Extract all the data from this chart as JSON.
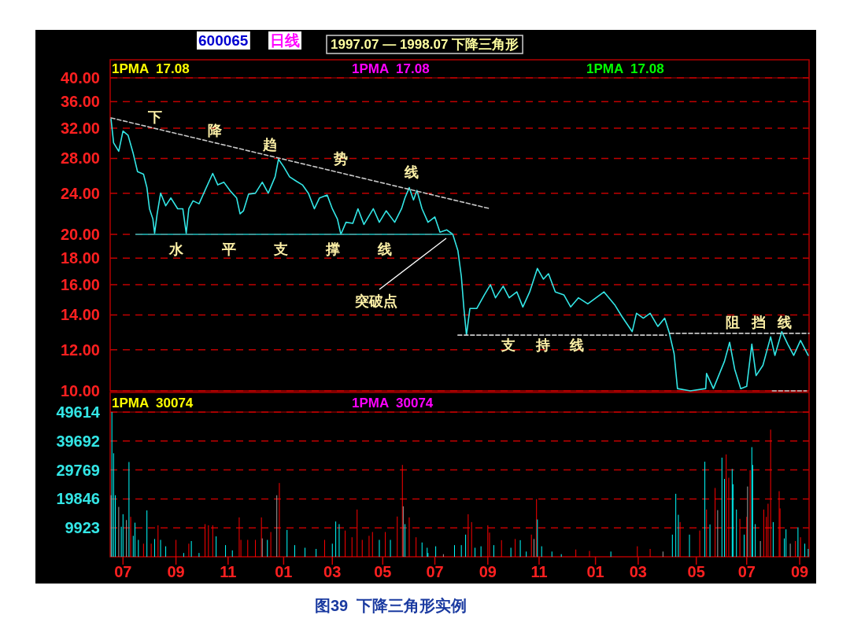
{
  "chart_data": [
    {
      "type": "line",
      "title": "1997.07 — 1998.07 下降三角形",
      "log": "y",
      "grid": "y",
      "tick_labels": "y",
      "xlim": [
        "1997-06-28",
        "1999-09-24"
      ],
      "ylim": [
        10,
        40
      ],
      "yticks": [
        {
          "value": 10,
          "label": "10.00"
        },
        {
          "value": 12,
          "label": "12.00"
        },
        {
          "value": 14,
          "label": "14.00"
        },
        {
          "value": 16,
          "label": "16.00"
        },
        {
          "value": 18,
          "label": "18.00"
        },
        {
          "value": 20,
          "label": "20.00"
        },
        {
          "value": 24,
          "label": "24.00"
        },
        {
          "value": 28,
          "label": "28.00"
        },
        {
          "value": 32,
          "label": "32.00"
        },
        {
          "value": 36,
          "label": "36.00"
        },
        {
          "value": 40,
          "label": "40.00"
        }
      ],
      "series": [
        {
          "color": "#33e6e6",
          "x": [
            "1997-06-29",
            "1997-07-02",
            "1997-07-08",
            "1997-07-13",
            "1997-07-19",
            "1997-07-25",
            "1997-07-30",
            "1997-08-06",
            "1997-08-10",
            "1997-08-13",
            "1997-08-17",
            "1997-08-19",
            "1997-08-22",
            "1997-08-26",
            "1997-09-01",
            "1997-09-07",
            "1997-09-15",
            "1997-09-21",
            "1997-09-25",
            "1997-09-28",
            "1997-10-03",
            "1997-10-10",
            "1997-10-17",
            "1997-10-26",
            "1997-11-01",
            "1997-11-08",
            "1997-11-15",
            "1997-11-23",
            "1997-11-27",
            "1997-12-01",
            "1997-12-07",
            "1997-12-15",
            "1997-12-23",
            "1997-12-30",
            "1998-01-07",
            "1998-01-11",
            "1998-01-17",
            "1998-01-24",
            "1998-02-01",
            "1998-02-08",
            "1998-02-15",
            "1998-02-22",
            "1998-02-28",
            "1998-03-09",
            "1998-03-15",
            "1998-03-21",
            "1998-03-25",
            "1998-03-31",
            "1998-04-08",
            "1998-04-14",
            "1998-04-21",
            "1998-05-02",
            "1998-05-09",
            "1998-05-17",
            "1998-05-27",
            "1998-06-04",
            "1998-06-08",
            "1998-06-13",
            "1998-06-18",
            "1998-06-22",
            "1998-06-28",
            "1998-07-05",
            "1998-07-13",
            "1998-07-19",
            "1998-07-27",
            "1998-08-03",
            "1998-08-09",
            "1998-08-13",
            "1998-08-16",
            "1998-08-19",
            "1998-08-23",
            "1998-08-31",
            "1998-09-09",
            "1998-09-16",
            "1998-09-22",
            "1998-10-01",
            "1998-10-08",
            "1998-10-17",
            "1998-10-24",
            "1998-11-01",
            "1998-11-10",
            "1998-11-17",
            "1998-11-23",
            "1998-12-01",
            "1998-12-11",
            "1998-12-19",
            "1998-12-28",
            "1999-01-08",
            "1999-01-27",
            "1999-02-09",
            "1999-02-17",
            "1999-03-01",
            "1999-03-06",
            "1999-03-14",
            "1999-03-22",
            "1999-03-31",
            "1999-04-08",
            "1999-04-13",
            "1999-04-19",
            "1999-04-23",
            "1999-05-08",
            "1999-05-26",
            "1999-05-27",
            "1999-06-04",
            "1999-06-17",
            "1999-06-23",
            "1999-06-29",
            "1999-07-06",
            "1999-07-13",
            "1999-07-19",
            "1999-07-24",
            "1999-08-01",
            "1999-08-10",
            "1999-08-15",
            "1999-08-23",
            "1999-08-30",
            "1999-09-06",
            "1999-09-14",
            "1999-09-23"
          ],
          "values": [
            33.3,
            30.0,
            28.9,
            31.6,
            31.0,
            28.6,
            26.4,
            26.1,
            24.6,
            22.4,
            21.4,
            20.1,
            21.9,
            24.0,
            22.7,
            23.5,
            22.4,
            22.4,
            20.1,
            22.4,
            23.2,
            22.9,
            24.3,
            26.2,
            24.9,
            25.2,
            24.3,
            23.5,
            21.9,
            22.2,
            23.9,
            24.0,
            25.2,
            24.0,
            25.8,
            27.9,
            27.0,
            25.8,
            25.3,
            24.9,
            24.0,
            22.4,
            23.5,
            23.8,
            22.4,
            21.4,
            20.0,
            21.1,
            21.0,
            22.4,
            20.9,
            22.4,
            21.1,
            22.2,
            21.1,
            22.4,
            23.5,
            24.6,
            23.3,
            24.3,
            22.4,
            21.1,
            21.6,
            20.2,
            20.4,
            20.0,
            18.6,
            16.6,
            14.4,
            12.8,
            14.4,
            14.4,
            15.3,
            16.0,
            15.1,
            15.9,
            15.1,
            15.5,
            14.5,
            15.5,
            17.2,
            16.4,
            16.8,
            15.5,
            15.3,
            14.5,
            15.1,
            14.7,
            15.5,
            14.6,
            13.9,
            13.0,
            14.1,
            13.8,
            14.1,
            13.3,
            13.8,
            13.0,
            11.8,
            10.1,
            10.0,
            10.1,
            10.8,
            10.1,
            11.4,
            12.4,
            11.0,
            10.1,
            10.2,
            12.3,
            10.7,
            11.2,
            12.7,
            11.7,
            13.0,
            12.3,
            11.7,
            12.5,
            11.7
          ]
        },
        {
          "color": "#c8c8c8",
          "line_style": "dashed",
          "x": [
            "1997-06-29",
            "1998-09-16"
          ],
          "values": [
            33.5,
            22.4
          ]
        },
        {
          "color": "#20c0c0",
          "line_style": "solid",
          "x": [
            "1997-07-28",
            "1998-08-03"
          ],
          "values": [
            20,
            20
          ]
        },
        {
          "color": "#c8c8c8",
          "line_style": "dashed",
          "x": [
            "1998-08-09",
            "1999-04-10"
          ],
          "values": [
            12.8,
            12.8
          ]
        },
        {
          "color": "#c8c8c8",
          "line_style": "dashed",
          "x": [
            "1999-04-14",
            "1999-09-24"
          ],
          "values": [
            12.9,
            12.9
          ]
        },
        {
          "color": "#c8c8c8",
          "line_style": "dashed",
          "x": [
            "1999-08-12",
            "1999-09-21"
          ],
          "values": [
            10.0,
            10.0
          ]
        }
      ],
      "annotations": [
        "600065",
        "日线",
        "1PMA  17.08",
        "1PMA  17.08",
        "1PMA  17.08",
        "下",
        "降",
        "趋",
        "势",
        "线",
        "水",
        "平",
        "支",
        "撑",
        "线",
        "突破点",
        "支",
        "持",
        "线",
        "阻",
        "挡",
        "线"
      ]
    },
    {
      "type": "bar",
      "grid": "y",
      "xlim": [
        "1997-06-28",
        "1999-09-24"
      ],
      "ylim": [
        0,
        49614
      ],
      "yticks": [
        9923,
        19846,
        29769,
        39692,
        49614
      ],
      "xticks": [
        {
          "value": "1997-07-13",
          "label": "07"
        },
        {
          "value": "1997-09-13",
          "label": "09"
        },
        {
          "value": "1997-11-13",
          "label": "11"
        },
        {
          "value": "1998-01-17",
          "label": "01"
        },
        {
          "value": "1998-03-15",
          "label": "03"
        },
        {
          "value": "1998-05-13",
          "label": "05"
        },
        {
          "value": "1998-07-13",
          "label": "07"
        },
        {
          "value": "1998-09-13",
          "label": "09"
        },
        {
          "value": "1998-11-12",
          "label": "11"
        },
        {
          "value": "1999-01-17",
          "label": "01"
        },
        {
          "value": "1999-03-08",
          "label": "03"
        },
        {
          "value": "1999-05-15",
          "label": "05"
        },
        {
          "value": "1999-07-13",
          "label": "07"
        },
        {
          "value": "1999-09-13",
          "label": "09"
        }
      ],
      "x": [
        "1997-06-29",
        "1997-06-30",
        "1997-07-02",
        "1997-07-04",
        "1997-07-08",
        "1997-07-11",
        "1997-07-13",
        "1997-07-17",
        "1997-07-20",
        "1997-07-22",
        "1997-07-25",
        "1997-07-27",
        "1997-07-31",
        "1997-08-06",
        "1997-08-10",
        "1997-08-15",
        "1997-08-19",
        "1997-08-23",
        "1997-08-26",
        "1997-09-01",
        "1997-09-13",
        "1997-09-22",
        "1997-09-28",
        "1997-10-01",
        "1997-10-10",
        "1997-10-17",
        "1997-10-21",
        "1997-10-26",
        "1997-10-30",
        "1997-11-10",
        "1997-11-18",
        "1997-11-26",
        "1997-11-28",
        "1997-12-06",
        "1997-12-15",
        "1997-12-22",
        "1997-12-23",
        "1997-12-29",
        "1998-01-02",
        "1998-01-09",
        "1998-01-12",
        "1998-01-21",
        "1998-01-30",
        "1998-02-11",
        "1998-02-24",
        "1998-03-06",
        "1998-03-15",
        "1998-03-19",
        "1998-03-23",
        "1998-03-30",
        "1998-04-07",
        "1998-04-13",
        "1998-04-19",
        "1998-04-27",
        "1998-05-01",
        "1998-05-09",
        "1998-05-16",
        "1998-05-22",
        "1998-05-30",
        "1998-06-05",
        "1998-06-06",
        "1998-06-08",
        "1998-06-13",
        "1998-06-21",
        "1998-06-28",
        "1998-07-04",
        "1998-07-05",
        "1998-07-14",
        "1998-07-23",
        "1998-08-05",
        "1998-08-13",
        "1998-08-18",
        "1998-08-21",
        "1998-08-25",
        "1998-08-29",
        "1998-09-05",
        "1998-09-13",
        "1998-09-15",
        "1998-09-20",
        "1998-09-29",
        "1998-10-10",
        "1998-10-15",
        "1998-10-21",
        "1998-10-28",
        "1998-11-03",
        "1998-11-06",
        "1998-11-09",
        "1998-11-10",
        "1998-11-15",
        "1998-11-27",
        "1998-12-08",
        "1998-12-25",
        "1999-01-10",
        "1999-02-04",
        "1999-03-07",
        "1999-03-22",
        "1999-04-06",
        "1999-04-17",
        "1999-04-21",
        "1999-04-24",
        "1999-04-26",
        "1999-05-07",
        "1999-05-19",
        "1999-05-25",
        "1999-05-27",
        "1999-05-31",
        "1999-06-06",
        "1999-06-09",
        "1999-06-14",
        "1999-06-17",
        "1999-06-19",
        "1999-06-22",
        "1999-06-26",
        "1999-06-27",
        "1999-07-01",
        "1999-07-05",
        "1999-07-10",
        "1999-07-13",
        "1999-07-14",
        "1999-07-17",
        "1999-07-19",
        "1999-07-20",
        "1999-07-23",
        "1999-07-29",
        "1999-08-02",
        "1999-08-05",
        "1999-08-07",
        "1999-08-10",
        "1999-08-13",
        "1999-08-20",
        "1999-08-21",
        "1999-08-26",
        "1999-08-28",
        "1999-09-02",
        "1999-09-08",
        "1999-09-11",
        "1999-09-14",
        "1999-09-19",
        "1999-09-23"
      ],
      "values": [
        21100,
        49600,
        35500,
        21100,
        17100,
        10300,
        14600,
        12600,
        32500,
        13700,
        7200,
        11700,
        5800,
        4500,
        15900,
        4500,
        6100,
        10800,
        5800,
        3600,
        5800,
        1300,
        4500,
        5400,
        1300,
        11200,
        10800,
        10800,
        7000,
        4000,
        2200,
        13500,
        5800,
        5800,
        5800,
        13500,
        6300,
        5800,
        8500,
        21100,
        25300,
        9200,
        4000,
        3100,
        2700,
        5800,
        4500,
        12100,
        11200,
        9000,
        6700,
        16200,
        5800,
        7200,
        8500,
        5800,
        8500,
        5800,
        13800,
        31500,
        17300,
        11200,
        13500,
        6700,
        4900,
        3100,
        1300,
        3600,
        900,
        4000,
        4000,
        7600,
        14600,
        11900,
        3100,
        3600,
        10800,
        8300,
        4000,
        5700,
        3100,
        6100,
        5700,
        1800,
        7600,
        6100,
        19800,
        12800,
        3600,
        1800,
        900,
        2500,
        2000,
        1800,
        3600,
        2700,
        1800,
        7600,
        21600,
        14400,
        11900,
        7600,
        9000,
        32600,
        16200,
        11100,
        23600,
        16000,
        34000,
        26700,
        35100,
        27100,
        30100,
        24900,
        16200,
        13000,
        7600,
        13700,
        24100,
        29700,
        37600,
        31500,
        11200,
        5400,
        16200,
        13700,
        18200,
        43600,
        11900,
        22500,
        16600,
        6300,
        9400,
        4500,
        5400,
        10100,
        6700,
        4500,
        2700
      ],
      "colors": [
        "#a0a0a0",
        "#00ffff",
        "#00ffff",
        "#00ffff",
        "#a0a0a0",
        "#00ffff",
        "#00ffff",
        "#a0a0a0",
        "#00ffff",
        "#ff0000",
        "#00ffff",
        "#00ffff",
        "#00ffff",
        "#ff0000",
        "#00ffff",
        "#ff0000",
        "#00ffff",
        "#ff0000",
        "#00ffff",
        "#00ffff",
        "#ff0000",
        "#00ffff",
        "#ff0000",
        "#00ffff",
        "#00ffff",
        "#ff0000",
        "#ff0000",
        "#ff0000",
        "#00ffff",
        "#00ffff",
        "#00ffff",
        "#ff0000",
        "#ff0000",
        "#ff0000",
        "#ff0000",
        "#ff0000",
        "#a0a0a0",
        "#00ffff",
        "#ff0000",
        "#a0a0a0",
        "#ff0000",
        "#00ffff",
        "#00ffff",
        "#00ffff",
        "#00ffff",
        "#ff0000",
        "#00ffff",
        "#00ffff",
        "#00ffff",
        "#ff0000",
        "#ff0000",
        "#ff0000",
        "#ff0000",
        "#ff0000",
        "#ff0000",
        "#00ffff",
        "#ff0000",
        "#00ffff",
        "#ff0000",
        "#ff0000",
        "#a0a0a0",
        "#00ffff",
        "#ff0000",
        "#ff0000",
        "#00ffff",
        "#00ffff",
        "#00ffff",
        "#00ffff",
        "#a0a0a0",
        "#00ffff",
        "#00ffff",
        "#00ffff",
        "#ff0000",
        "#ff0000",
        "#00ffff",
        "#00ffff",
        "#ff0000",
        "#ff0000",
        "#00ffff",
        "#ff0000",
        "#00ffff",
        "#ff0000",
        "#00ffff",
        "#00ffff",
        "#ff0000",
        "#a0a0a0",
        "#ff0000",
        "#00ffff",
        "#00ffff",
        "#00ffff",
        "#00ffff",
        "#ff0000",
        "#ff0000",
        "#00ffff",
        "#ff0000",
        "#ff0000",
        "#a0a0a0",
        "#00ffff",
        "#00ffff",
        "#00ffff",
        "#ff0000",
        "#00ffff",
        "#ff0000",
        "#00ffff",
        "#ff0000",
        "#00ffff",
        "#ff0000",
        "#a0a0a0",
        "#00ffff",
        "#00ffff",
        "#ff0000",
        "#ff0000",
        "#00ffff",
        "#00ffff",
        "#00ffff",
        "#ff0000",
        "#00ffff",
        "#ff0000",
        "#a0a0a0",
        "#ff0000",
        "#00ffff",
        "#00ffff",
        "#00ffff",
        "#a0a0a0",
        "#ff0000",
        "#ff0000",
        "#ff0000",
        "#ff0000",
        "#00ffff",
        "#ff0000",
        "#ff0000",
        "#00ffff",
        "#00ffff",
        "#a0a0a0",
        "#ff0000",
        "#00ffff",
        "#ff0000",
        "#00ffff",
        "#00ffff"
      ],
      "annotations": [
        "1PMA  30074",
        "1PMA  30074",
        "图39  下降三角形实例"
      ]
    }
  ]
}
